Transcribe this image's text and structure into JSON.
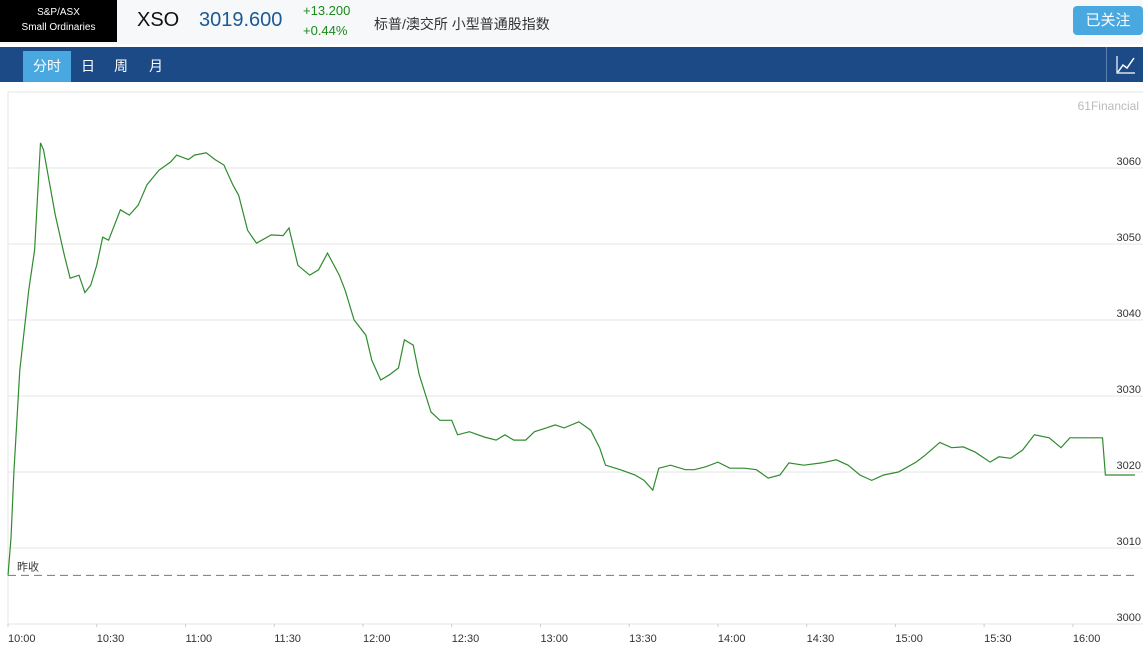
{
  "header": {
    "index_name": [
      "S&P/ASX",
      "Small Ordinaries"
    ],
    "code": "XSO",
    "price": "3019.600",
    "change": "+13.200",
    "change_pct": "+0.44%",
    "description": "标普/澳交所 小型普通股指数",
    "follow_button": "已关注"
  },
  "nav": {
    "tabs": [
      "分时",
      "日",
      "周",
      "月"
    ]
  },
  "chart_data": {
    "type": "line",
    "watermark": "61Financial",
    "color": "#2e8b2e",
    "grid": true,
    "x": [
      "10:00",
      "10:01",
      "10:02",
      "10:04",
      "10:07",
      "10:09",
      "10:11",
      "10:12",
      "10:16",
      "10:19",
      "10:21",
      "10:24",
      "10:26",
      "10:28",
      "10:30",
      "10:32",
      "10:34",
      "10:38",
      "10:41",
      "10:44",
      "10:47",
      "10:51",
      "10:55",
      "10:57",
      "11:01",
      "11:03",
      "11:07",
      "11:10",
      "11:13",
      "11:16",
      "11:18",
      "11:21",
      "11:24",
      "11:29",
      "11:33",
      "11:35",
      "11:38",
      "11:42",
      "11:45",
      "11:48",
      "11:52",
      "11:54",
      "11:57",
      "12:01",
      "12:03",
      "12:06",
      "12:09",
      "12:12",
      "12:14",
      "12:17",
      "12:19",
      "12:23",
      "12:26",
      "12:30",
      "12:32",
      "12:36",
      "12:41",
      "12:45",
      "12:48",
      "12:51",
      "12:55",
      "12:58",
      "13:02",
      "13:05",
      "13:08",
      "13:13",
      "13:17",
      "13:20",
      "13:22",
      "13:27",
      "13:32",
      "13:35",
      "13:38",
      "13:40",
      "13:44",
      "13:49",
      "13:52",
      "13:56",
      "14:00",
      "14:04",
      "14:09",
      "14:13",
      "14:17",
      "14:21",
      "14:24",
      "14:29",
      "14:35",
      "14:40",
      "14:44",
      "14:48",
      "14:52",
      "14:56",
      "15:01",
      "15:07",
      "15:10",
      "15:15",
      "15:19",
      "15:23",
      "15:27",
      "15:32",
      "15:35",
      "15:39",
      "15:43",
      "15:47",
      "15:52",
      "15:56",
      "15:59",
      "16:04",
      "16:10",
      "16:11",
      "16:21"
    ],
    "values": [
      3006.4,
      3011.3,
      3020.0,
      3033.4,
      3043.9,
      3049.2,
      3063.3,
      3062.4,
      3053.8,
      3048.6,
      3045.5,
      3045.9,
      3043.6,
      3044.6,
      3047.2,
      3050.9,
      3050.5,
      3054.5,
      3053.8,
      3055.1,
      3057.8,
      3059.7,
      3060.8,
      3061.7,
      3061.1,
      3061.7,
      3062.0,
      3061.1,
      3060.4,
      3057.8,
      3056.4,
      3051.8,
      3050.1,
      3051.2,
      3051.1,
      3052.1,
      3047.2,
      3045.9,
      3046.6,
      3048.8,
      3045.9,
      3043.9,
      3040.0,
      3038.0,
      3034.7,
      3032.1,
      3032.8,
      3033.7,
      3037.4,
      3036.7,
      3032.8,
      3027.9,
      3026.8,
      3026.8,
      3024.9,
      3025.3,
      3024.6,
      3024.2,
      3024.9,
      3024.2,
      3024.2,
      3025.3,
      3025.8,
      3026.2,
      3025.8,
      3026.6,
      3025.5,
      3023.2,
      3020.9,
      3020.3,
      3019.6,
      3018.9,
      3017.6,
      3020.5,
      3020.9,
      3020.3,
      3020.3,
      3020.7,
      3021.3,
      3020.5,
      3020.5,
      3020.3,
      3019.2,
      3019.6,
      3021.2,
      3020.9,
      3021.2,
      3021.6,
      3020.9,
      3019.6,
      3018.9,
      3019.6,
      3020.0,
      3021.3,
      3022.2,
      3023.9,
      3023.2,
      3023.3,
      3022.6,
      3021.3,
      3022.0,
      3021.8,
      3022.9,
      3024.9,
      3024.5,
      3023.2,
      3024.5,
      3024.5,
      3024.5,
      3019.6,
      3019.6
    ],
    "xlim": [
      "10:00",
      "16:21"
    ],
    "xticks": [
      "10:00",
      "10:30",
      "11:00",
      "11:30",
      "12:00",
      "12:30",
      "13:00",
      "13:30",
      "14:00",
      "14:30",
      "15:00",
      "15:30",
      "16:00"
    ],
    "ylim": [
      3000,
      3070
    ],
    "yticks": [
      3000,
      3010,
      3020,
      3030,
      3040,
      3050,
      3060
    ],
    "prev_close": {
      "label": "昨收",
      "value": 3006.4
    }
  }
}
